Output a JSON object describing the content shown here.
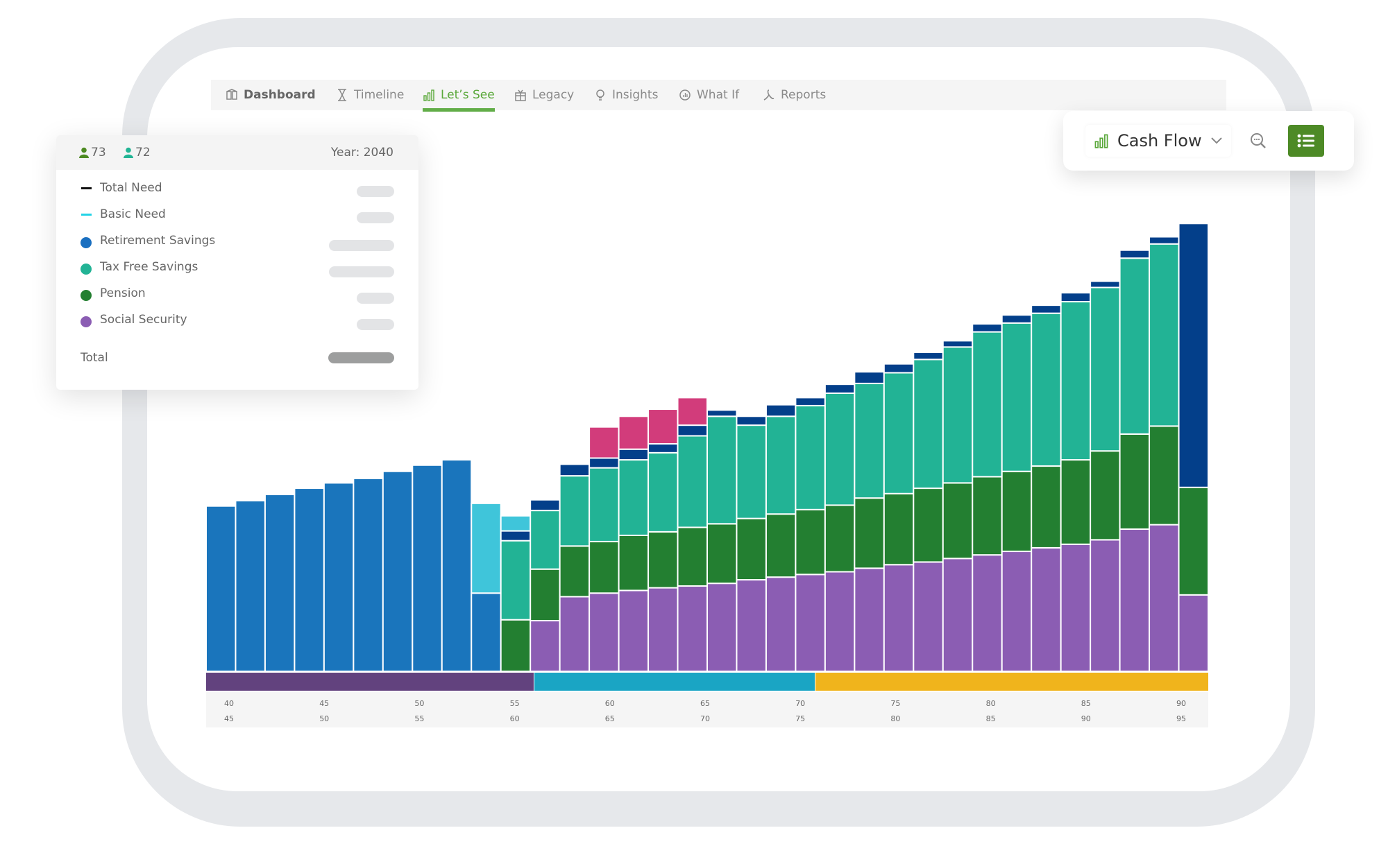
{
  "nav": {
    "items": [
      {
        "label": "Dashboard",
        "icon": "dashboard-icon",
        "active": false
      },
      {
        "label": "Timeline",
        "icon": "hourglass-icon",
        "active": false
      },
      {
        "label": "Let’s See",
        "icon": "bar-chart-icon",
        "active": true
      },
      {
        "label": "Legacy",
        "icon": "gift-icon",
        "active": false
      },
      {
        "label": "Insights",
        "icon": "lightbulb-icon",
        "active": false
      },
      {
        "label": "What If",
        "icon": "chart-magnifier-icon",
        "active": false
      },
      {
        "label": "Reports",
        "icon": "pdf-icon",
        "active": false
      }
    ],
    "accent": "#62ad48"
  },
  "legend_card": {
    "person1_age": "73",
    "person2_age": "72",
    "person1_color": "#4d8a22",
    "person2_color": "#21b494",
    "year": "Year: 2040",
    "items": [
      {
        "label": "Total Need",
        "marker": "line",
        "color": "#111111"
      },
      {
        "label": "Basic Need",
        "marker": "line",
        "color": "#22d3e6"
      },
      {
        "label": "Retirement Savings",
        "marker": "dot",
        "color": "#1a6fc0"
      },
      {
        "label": "Tax Free Savings",
        "marker": "dot",
        "color": "#22b395"
      },
      {
        "label": "Pension",
        "marker": "dot",
        "color": "#237f31"
      },
      {
        "label": "Social Security",
        "marker": "dot",
        "color": "#8b5db3"
      }
    ],
    "total_label": "Total"
  },
  "controls": {
    "view_selected": "Cash Flow",
    "view_icon": "bar-chart-icon",
    "search_icon": "zoom-search-icon",
    "list_icon": "list-icon",
    "button_color": "#4d8a26"
  },
  "chart_data": {
    "type": "bar",
    "stacked": true,
    "grid": false,
    "ylim": [
      0,
      505
    ],
    "series": [
      {
        "name": "Social Security",
        "color": "#8b5db3",
        "values": [
          0,
          0,
          0,
          0,
          0,
          0,
          0,
          0,
          0,
          0,
          0,
          57,
          84,
          88,
          91,
          94,
          96,
          99,
          103,
          106,
          109,
          112,
          116,
          120,
          123,
          127,
          131,
          135,
          139,
          143,
          148,
          160,
          165,
          86
        ]
      },
      {
        "name": "Pension",
        "color": "#237f31",
        "values": [
          0,
          0,
          0,
          0,
          0,
          0,
          0,
          0,
          0,
          0,
          58,
          58,
          57,
          58,
          62,
          63,
          66,
          67,
          69,
          71,
          73,
          75,
          79,
          80,
          83,
          85,
          88,
          90,
          92,
          95,
          100,
          107,
          111,
          121
        ]
      },
      {
        "name": "Tax Free Savings",
        "color": "#22b395",
        "values": [
          0,
          0,
          0,
          0,
          0,
          0,
          0,
          0,
          0,
          0,
          89,
          66,
          79,
          83,
          85,
          89,
          103,
          121,
          105,
          110,
          117,
          126,
          129,
          136,
          145,
          153,
          163,
          167,
          172,
          178,
          184,
          198,
          205,
          0
        ]
      },
      {
        "name": "Retirement Savings",
        "color": "#1a75bc",
        "values": [
          186,
          192,
          199,
          206,
          212,
          217,
          225,
          232,
          238,
          88,
          0,
          0,
          0,
          0,
          0,
          0,
          0,
          0,
          0,
          0,
          0,
          0,
          0,
          0,
          0,
          0,
          0,
          0,
          0,
          0,
          0,
          0,
          0,
          0
        ]
      },
      {
        "color": "#033f8a",
        "values": [
          0,
          0,
          0,
          0,
          0,
          0,
          0,
          0,
          0,
          0,
          11,
          12,
          13,
          11,
          12,
          10,
          12,
          7,
          10,
          13,
          9,
          10,
          13,
          10,
          8,
          7,
          9,
          9,
          9,
          10,
          7,
          9,
          8,
          297
        ]
      },
      {
        "color": "#d23c7b",
        "values": [
          0,
          0,
          0,
          0,
          0,
          0,
          0,
          0,
          0,
          0,
          0,
          0,
          0,
          35,
          37,
          39,
          31,
          0,
          0,
          0,
          0,
          0,
          0,
          0,
          0,
          0,
          0,
          0,
          0,
          0,
          0,
          0,
          0,
          0
        ]
      },
      {
        "color": "#3fc5da",
        "values": [
          0,
          0,
          0,
          0,
          0,
          0,
          0,
          0,
          0,
          101,
          17,
          0,
          0,
          0,
          0,
          0,
          0,
          0,
          0,
          0,
          0,
          0,
          0,
          0,
          0,
          0,
          0,
          0,
          0,
          0,
          0,
          0,
          0,
          0
        ]
      }
    ],
    "phase_bands": [
      {
        "color": "#62427e",
        "span": [
          0,
          0.327
        ]
      },
      {
        "color": "#1aa5c4",
        "span": [
          0.327,
          0.607
        ]
      },
      {
        "color": "#f0b41c",
        "span": [
          0.607,
          1
        ]
      }
    ],
    "x_tick_labels_row1": [
      "40",
      "45",
      "50",
      "55",
      "60",
      "65",
      "70",
      "75",
      "80",
      "85",
      "90"
    ],
    "x_tick_labels_row2": [
      "45",
      "50",
      "55",
      "60",
      "65",
      "70",
      "75",
      "80",
      "85",
      "90",
      "95"
    ]
  }
}
